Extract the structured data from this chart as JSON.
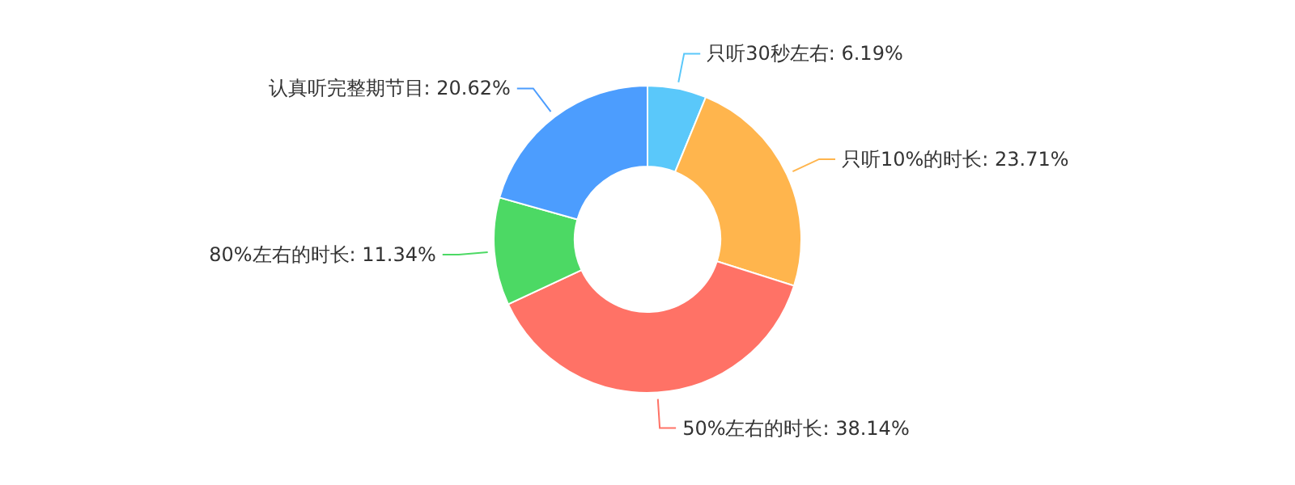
{
  "chart_data": {
    "type": "donut",
    "categories": [
      "只听30秒左右",
      "只听10%的时长",
      "50%左右的时长",
      "80%左右的时长",
      "认真听完整期节目"
    ],
    "values": [
      6.19,
      23.71,
      38.14,
      11.34,
      20.62
    ],
    "colors": [
      "#5ac8fa",
      "#ffb54d",
      "#ff7266",
      "#4cd964",
      "#4c9dfe"
    ],
    "value_labels": [
      ": 6.19%",
      ": 23.71%",
      ": 38.14%",
      ": 11.34%",
      ": 20.62%"
    ]
  }
}
